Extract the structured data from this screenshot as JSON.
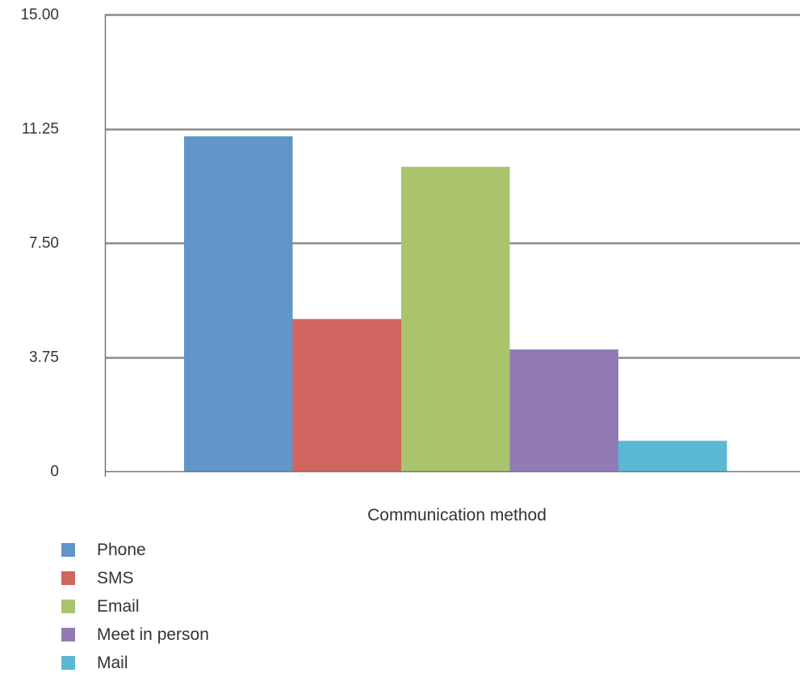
{
  "chart_data": {
    "type": "bar",
    "title": "",
    "xlabel": "Communication method",
    "ylabel": "",
    "ylim": [
      0,
      15
    ],
    "yticks": [
      "0",
      "3.75",
      "7.50",
      "11.25",
      "15.00"
    ],
    "ytick_values": [
      0,
      3.75,
      7.5,
      11.25,
      15
    ],
    "grid": true,
    "legend_position": "bottom-left",
    "series": [
      {
        "name": "Phone",
        "value": 11,
        "color": "#6096c8"
      },
      {
        "name": "SMS",
        "value": 5,
        "color": "#d16560"
      },
      {
        "name": "Email",
        "value": 10,
        "color": "#a9c46c"
      },
      {
        "name": "Meet in person",
        "value": 4,
        "color": "#927bb4"
      },
      {
        "name": "Mail",
        "value": 1,
        "color": "#5ab8d2"
      }
    ]
  }
}
